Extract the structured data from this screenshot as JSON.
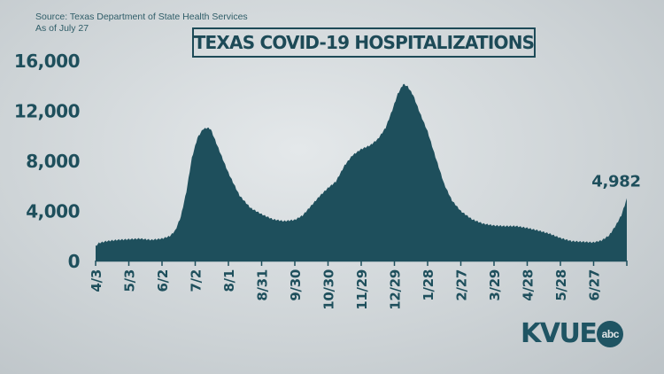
{
  "source": {
    "line1": "Source: Texas Department of State Health Services",
    "line2": "As of July 27"
  },
  "title": "TEXAS COVID-19 HOSPITALIZATIONS",
  "logo": {
    "brand": "KVUE",
    "network": "abc"
  },
  "colors": {
    "series": "#1e4f5c",
    "text": "#1e4f5c"
  },
  "chart_data": {
    "type": "area",
    "ylim": [
      0,
      16000
    ],
    "yticks": [
      0,
      4000,
      8000,
      12000,
      16000
    ],
    "ytick_labels": [
      "0",
      "4,000",
      "8,000",
      "12,000",
      "16,000"
    ],
    "xtick_labels": [
      "4/3",
      "5/3",
      "6/2",
      "7/2",
      "8/1",
      "8/31",
      "9/30",
      "10/30",
      "11/29",
      "12/29",
      "1/28",
      "2/27",
      "3/29",
      "4/28",
      "5/28",
      "6/27"
    ],
    "xtick_day_index": [
      0,
      30,
      60,
      90,
      120,
      150,
      180,
      210,
      240,
      270,
      300,
      330,
      360,
      390,
      420,
      450
    ],
    "total_days": 481,
    "series": [
      {
        "points": [
          [
            0,
            1150
          ],
          [
            3,
            1400
          ],
          [
            10,
            1550
          ],
          [
            20,
            1650
          ],
          [
            30,
            1700
          ],
          [
            40,
            1750
          ],
          [
            50,
            1650
          ],
          [
            60,
            1750
          ],
          [
            67,
            1950
          ],
          [
            72,
            2400
          ],
          [
            77,
            3500
          ],
          [
            82,
            5500
          ],
          [
            87,
            8200
          ],
          [
            92,
            9800
          ],
          [
            97,
            10500
          ],
          [
            101,
            10600
          ],
          [
            104,
            10500
          ],
          [
            109,
            9400
          ],
          [
            114,
            8300
          ],
          [
            120,
            7000
          ],
          [
            130,
            5200
          ],
          [
            140,
            4200
          ],
          [
            150,
            3700
          ],
          [
            160,
            3300
          ],
          [
            170,
            3150
          ],
          [
            180,
            3250
          ],
          [
            187,
            3600
          ],
          [
            195,
            4400
          ],
          [
            203,
            5200
          ],
          [
            210,
            5800
          ],
          [
            217,
            6300
          ],
          [
            225,
            7600
          ],
          [
            232,
            8400
          ],
          [
            240,
            8900
          ],
          [
            248,
            9200
          ],
          [
            255,
            9700
          ],
          [
            262,
            10600
          ],
          [
            268,
            12000
          ],
          [
            273,
            13300
          ],
          [
            278,
            14100
          ],
          [
            282,
            13900
          ],
          [
            287,
            13200
          ],
          [
            293,
            11800
          ],
          [
            300,
            10300
          ],
          [
            307,
            8300
          ],
          [
            315,
            6100
          ],
          [
            322,
            4800
          ],
          [
            330,
            3950
          ],
          [
            340,
            3300
          ],
          [
            350,
            2950
          ],
          [
            360,
            2800
          ],
          [
            370,
            2750
          ],
          [
            380,
            2750
          ],
          [
            390,
            2600
          ],
          [
            400,
            2400
          ],
          [
            410,
            2150
          ],
          [
            420,
            1800
          ],
          [
            430,
            1550
          ],
          [
            440,
            1500
          ],
          [
            450,
            1450
          ],
          [
            457,
            1600
          ],
          [
            464,
            2000
          ],
          [
            470,
            2800
          ],
          [
            475,
            3600
          ],
          [
            478,
            4400
          ],
          [
            480,
            4982
          ]
        ]
      }
    ],
    "annotation": {
      "label": "4,982",
      "day_index": 480,
      "value": 4982
    }
  }
}
